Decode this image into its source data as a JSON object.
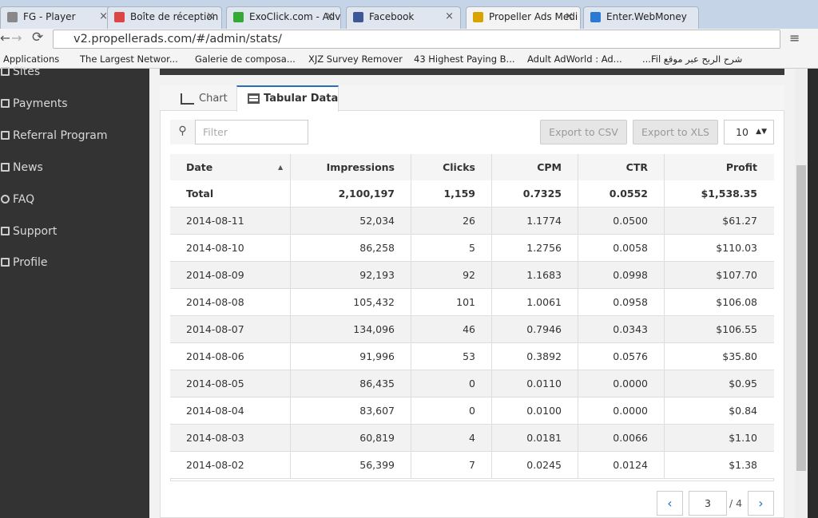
{
  "browser": {
    "tabs": [
      "FG - Player",
      "Boîte de réception (",
      "ExoClick.com - Adv",
      "Facebook",
      "Propeller Ads Medi",
      "Enter.WebMoney"
    ],
    "url": "v2.propellerads.com/#/admin/stats/",
    "bookmarks": [
      "Applications",
      "The Largest Networ...",
      "Galerie de composa...",
      "XJZ Survey Remover",
      "43 Highest Paying B...",
      "Adult AdWorld : Ad...",
      "شرح الربح عبر موقع Fil..."
    ]
  },
  "sidebar": {
    "items": [
      "Sites",
      "Payments",
      "Referral Program",
      "News",
      "FAQ",
      "Support",
      "Profile"
    ]
  },
  "view_tabs": [
    "Chart",
    "Tabular Data"
  ],
  "toolbar": {
    "filter_placeholder": "Filter",
    "export_csv": "Export to CSV",
    "export_xls": "Export to XLS",
    "page_size": "10"
  },
  "table": {
    "headers": [
      "Date",
      "Impressions",
      "Clicks",
      "CPM",
      "CTR",
      "Profit"
    ],
    "total": [
      "Total",
      "2,100,197",
      "1,159",
      "0.7325",
      "0.0552",
      "$1,538.35"
    ],
    "rows": [
      [
        "2014-08-11",
        "52,034",
        "26",
        "1.1774",
        "0.0500",
        "$61.27"
      ],
      [
        "2014-08-10",
        "86,258",
        "5",
        "1.2756",
        "0.0058",
        "$110.03"
      ],
      [
        "2014-08-09",
        "92,193",
        "92",
        "1.1683",
        "0.0998",
        "$107.70"
      ],
      [
        "2014-08-08",
        "105,432",
        "101",
        "1.0061",
        "0.0958",
        "$106.08"
      ],
      [
        "2014-08-07",
        "134,096",
        "46",
        "0.7946",
        "0.0343",
        "$106.55"
      ],
      [
        "2014-08-06",
        "91,996",
        "53",
        "0.3892",
        "0.0576",
        "$35.80"
      ],
      [
        "2014-08-05",
        "86,435",
        "0",
        "0.0110",
        "0.0000",
        "$0.95"
      ],
      [
        "2014-08-04",
        "83,607",
        "0",
        "0.0100",
        "0.0000",
        "$0.84"
      ],
      [
        "2014-08-03",
        "60,819",
        "4",
        "0.0181",
        "0.0066",
        "$1.10"
      ],
      [
        "2014-08-02",
        "56,399",
        "7",
        "0.0245",
        "0.0124",
        "$1.38"
      ]
    ]
  },
  "pagination": {
    "page": "3",
    "of": "/ 4"
  }
}
